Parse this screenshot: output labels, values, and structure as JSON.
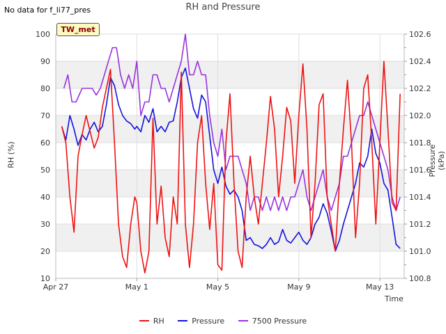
{
  "header": {
    "note": "No data for f_li77_pres",
    "title": "RH and Pressure",
    "badge": "TW_met"
  },
  "axes": {
    "xlabel": "Time",
    "ylabel_left": "RH (%)",
    "ylabel_right": "Pressure (kPa)"
  },
  "colors": {
    "RH": "#ee1111",
    "Pressure": "#1111dd",
    "7500 Pressure": "#9933dd",
    "band": "#f0f0f0",
    "grid": "#dddddd"
  },
  "chart_data": {
    "type": "line",
    "x_ticks": [
      {
        "day": 0,
        "label": "Apr 27"
      },
      {
        "day": 4,
        "label": "May 1"
      },
      {
        "day": 8,
        "label": "May 5"
      },
      {
        "day": 12,
        "label": "May 9"
      },
      {
        "day": 16,
        "label": "May 13"
      }
    ],
    "xlim_days": [
      0,
      17.2
    ],
    "ylim_left": [
      10,
      100
    ],
    "yticks_left": [
      10,
      20,
      30,
      40,
      50,
      60,
      70,
      80,
      90,
      100
    ],
    "ylim_right": [
      100.8,
      102.6
    ],
    "yticks_right": [
      100.8,
      101.0,
      101.2,
      101.4,
      101.6,
      101.8,
      102.0,
      102.2,
      102.4,
      102.6
    ],
    "grid": true,
    "legend_position": "bottom-center",
    "series": [
      {
        "name": "RH",
        "axis": "left",
        "points": [
          [
            0.3,
            66
          ],
          [
            0.5,
            60
          ],
          [
            0.7,
            40
          ],
          [
            0.9,
            27
          ],
          [
            1.1,
            55
          ],
          [
            1.3,
            63
          ],
          [
            1.5,
            70
          ],
          [
            1.7,
            64
          ],
          [
            1.9,
            58
          ],
          [
            2.1,
            62
          ],
          [
            2.3,
            73
          ],
          [
            2.5,
            80
          ],
          [
            2.7,
            87
          ],
          [
            2.9,
            60
          ],
          [
            3.1,
            30
          ],
          [
            3.3,
            18
          ],
          [
            3.5,
            14
          ],
          [
            3.7,
            30
          ],
          [
            3.9,
            40
          ],
          [
            4.0,
            38
          ],
          [
            4.2,
            20
          ],
          [
            4.4,
            12
          ],
          [
            4.6,
            20
          ],
          [
            4.8,
            69
          ],
          [
            5.0,
            30
          ],
          [
            5.2,
            44
          ],
          [
            5.4,
            25
          ],
          [
            5.6,
            18
          ],
          [
            5.8,
            40
          ],
          [
            6.0,
            30
          ],
          [
            6.2,
            86
          ],
          [
            6.4,
            30
          ],
          [
            6.6,
            14
          ],
          [
            6.8,
            30
          ],
          [
            7.0,
            60
          ],
          [
            7.2,
            70
          ],
          [
            7.4,
            45
          ],
          [
            7.6,
            28
          ],
          [
            7.8,
            45
          ],
          [
            8.0,
            15
          ],
          [
            8.2,
            13
          ],
          [
            8.4,
            60
          ],
          [
            8.6,
            78
          ],
          [
            8.8,
            45
          ],
          [
            9.0,
            20
          ],
          [
            9.2,
            14
          ],
          [
            9.4,
            40
          ],
          [
            9.6,
            55
          ],
          [
            9.8,
            40
          ],
          [
            10.0,
            30
          ],
          [
            10.2,
            45
          ],
          [
            10.4,
            60
          ],
          [
            10.6,
            77
          ],
          [
            10.8,
            65
          ],
          [
            11.0,
            40
          ],
          [
            11.2,
            55
          ],
          [
            11.4,
            73
          ],
          [
            11.6,
            68
          ],
          [
            11.8,
            45
          ],
          [
            12.0,
            70
          ],
          [
            12.2,
            89
          ],
          [
            12.4,
            65
          ],
          [
            12.6,
            25
          ],
          [
            12.8,
            45
          ],
          [
            13.0,
            74
          ],
          [
            13.2,
            78
          ],
          [
            13.4,
            40
          ],
          [
            13.6,
            30
          ],
          [
            13.8,
            20
          ],
          [
            14.0,
            45
          ],
          [
            14.2,
            65
          ],
          [
            14.4,
            83
          ],
          [
            14.6,
            60
          ],
          [
            14.8,
            25
          ],
          [
            15.0,
            45
          ],
          [
            15.2,
            80
          ],
          [
            15.4,
            85
          ],
          [
            15.6,
            60
          ],
          [
            15.8,
            30
          ],
          [
            16.0,
            60
          ],
          [
            16.2,
            90
          ],
          [
            16.4,
            65
          ],
          [
            16.6,
            38
          ],
          [
            16.8,
            35
          ],
          [
            17.0,
            78
          ]
        ]
      },
      {
        "name": "Pressure",
        "axis": "right",
        "points": [
          [
            0.3,
            101.92
          ],
          [
            0.5,
            101.82
          ],
          [
            0.7,
            102.0
          ],
          [
            0.9,
            101.9
          ],
          [
            1.1,
            101.78
          ],
          [
            1.3,
            101.86
          ],
          [
            1.5,
            101.82
          ],
          [
            1.7,
            101.9
          ],
          [
            1.9,
            101.95
          ],
          [
            2.1,
            101.88
          ],
          [
            2.3,
            101.92
          ],
          [
            2.5,
            102.08
          ],
          [
            2.7,
            102.28
          ],
          [
            2.9,
            102.22
          ],
          [
            3.1,
            102.08
          ],
          [
            3.3,
            102.0
          ],
          [
            3.5,
            101.96
          ],
          [
            3.7,
            101.94
          ],
          [
            3.9,
            101.9
          ],
          [
            4.0,
            101.92
          ],
          [
            4.2,
            101.88
          ],
          [
            4.4,
            102.0
          ],
          [
            4.6,
            101.95
          ],
          [
            4.8,
            102.05
          ],
          [
            5.0,
            101.88
          ],
          [
            5.2,
            101.92
          ],
          [
            5.4,
            101.88
          ],
          [
            5.6,
            101.95
          ],
          [
            5.8,
            101.96
          ],
          [
            6.0,
            102.1
          ],
          [
            6.2,
            102.28
          ],
          [
            6.4,
            102.35
          ],
          [
            6.6,
            102.2
          ],
          [
            6.8,
            102.05
          ],
          [
            7.0,
            101.98
          ],
          [
            7.2,
            102.15
          ],
          [
            7.4,
            102.1
          ],
          [
            7.6,
            101.85
          ],
          [
            7.8,
            101.6
          ],
          [
            8.0,
            101.5
          ],
          [
            8.2,
            101.62
          ],
          [
            8.4,
            101.48
          ],
          [
            8.6,
            101.42
          ],
          [
            8.8,
            101.45
          ],
          [
            9.0,
            101.4
          ],
          [
            9.2,
            101.3
          ],
          [
            9.4,
            101.08
          ],
          [
            9.6,
            101.1
          ],
          [
            9.8,
            101.05
          ],
          [
            10.0,
            101.04
          ],
          [
            10.2,
            101.02
          ],
          [
            10.4,
            101.05
          ],
          [
            10.6,
            101.1
          ],
          [
            10.8,
            101.05
          ],
          [
            11.0,
            101.07
          ],
          [
            11.2,
            101.16
          ],
          [
            11.4,
            101.08
          ],
          [
            11.6,
            101.06
          ],
          [
            11.8,
            101.1
          ],
          [
            12.0,
            101.14
          ],
          [
            12.2,
            101.08
          ],
          [
            12.4,
            101.05
          ],
          [
            12.6,
            101.1
          ],
          [
            12.8,
            101.2
          ],
          [
            13.0,
            101.25
          ],
          [
            13.2,
            101.35
          ],
          [
            13.4,
            101.28
          ],
          [
            13.6,
            101.15
          ],
          [
            13.8,
            101.0
          ],
          [
            14.0,
            101.08
          ],
          [
            14.2,
            101.2
          ],
          [
            14.4,
            101.3
          ],
          [
            14.6,
            101.4
          ],
          [
            14.8,
            101.5
          ],
          [
            15.0,
            101.65
          ],
          [
            15.2,
            101.62
          ],
          [
            15.4,
            101.7
          ],
          [
            15.6,
            101.9
          ],
          [
            15.8,
            101.72
          ],
          [
            16.0,
            101.65
          ],
          [
            16.2,
            101.5
          ],
          [
            16.4,
            101.45
          ],
          [
            16.6,
            101.25
          ],
          [
            16.8,
            101.05
          ],
          [
            17.0,
            101.02
          ]
        ]
      },
      {
        "name": "7500 Pressure",
        "axis": "right",
        "points": [
          [
            0.4,
            102.2
          ],
          [
            0.6,
            102.3
          ],
          [
            0.8,
            102.1
          ],
          [
            1.0,
            102.1
          ],
          [
            1.3,
            102.2
          ],
          [
            1.8,
            102.2
          ],
          [
            2.0,
            102.15
          ],
          [
            2.2,
            102.2
          ],
          [
            2.4,
            102.3
          ],
          [
            2.6,
            102.4
          ],
          [
            2.8,
            102.5
          ],
          [
            3.0,
            102.5
          ],
          [
            3.2,
            102.3
          ],
          [
            3.4,
            102.2
          ],
          [
            3.6,
            102.3
          ],
          [
            3.8,
            102.2
          ],
          [
            3.9,
            102.3
          ],
          [
            4.0,
            102.4
          ],
          [
            4.2,
            102.0
          ],
          [
            4.4,
            102.1
          ],
          [
            4.6,
            102.1
          ],
          [
            4.8,
            102.3
          ],
          [
            5.0,
            102.3
          ],
          [
            5.2,
            102.2
          ],
          [
            5.4,
            102.2
          ],
          [
            5.6,
            102.1
          ],
          [
            5.8,
            102.2
          ],
          [
            6.0,
            102.3
          ],
          [
            6.2,
            102.4
          ],
          [
            6.4,
            102.6
          ],
          [
            6.6,
            102.3
          ],
          [
            6.8,
            102.3
          ],
          [
            7.0,
            102.4
          ],
          [
            7.2,
            102.3
          ],
          [
            7.4,
            102.3
          ],
          [
            7.6,
            102.0
          ],
          [
            7.8,
            101.8
          ],
          [
            8.0,
            101.7
          ],
          [
            8.2,
            101.9
          ],
          [
            8.4,
            101.6
          ],
          [
            8.6,
            101.7
          ],
          [
            8.8,
            101.7
          ],
          [
            9.0,
            101.7
          ],
          [
            9.2,
            101.6
          ],
          [
            9.4,
            101.5
          ],
          [
            9.6,
            101.3
          ],
          [
            9.8,
            101.4
          ],
          [
            10.0,
            101.4
          ],
          [
            10.2,
            101.3
          ],
          [
            10.4,
            101.4
          ],
          [
            10.6,
            101.3
          ],
          [
            10.8,
            101.4
          ],
          [
            11.0,
            101.3
          ],
          [
            11.2,
            101.4
          ],
          [
            11.4,
            101.3
          ],
          [
            11.6,
            101.4
          ],
          [
            11.8,
            101.4
          ],
          [
            12.0,
            101.5
          ],
          [
            12.2,
            101.6
          ],
          [
            12.4,
            101.4
          ],
          [
            12.6,
            101.3
          ],
          [
            12.8,
            101.4
          ],
          [
            13.0,
            101.5
          ],
          [
            13.2,
            101.6
          ],
          [
            13.4,
            101.4
          ],
          [
            13.6,
            101.3
          ],
          [
            13.8,
            101.4
          ],
          [
            14.0,
            101.5
          ],
          [
            14.2,
            101.7
          ],
          [
            14.4,
            101.7
          ],
          [
            14.6,
            101.8
          ],
          [
            14.8,
            101.9
          ],
          [
            15.0,
            102.0
          ],
          [
            15.2,
            102.0
          ],
          [
            15.4,
            102.1
          ],
          [
            15.6,
            102.0
          ],
          [
            15.8,
            101.9
          ],
          [
            16.0,
            101.8
          ],
          [
            16.2,
            101.7
          ],
          [
            16.4,
            101.6
          ],
          [
            16.6,
            101.4
          ],
          [
            16.8,
            101.3
          ],
          [
            17.0,
            101.4
          ]
        ]
      }
    ]
  }
}
